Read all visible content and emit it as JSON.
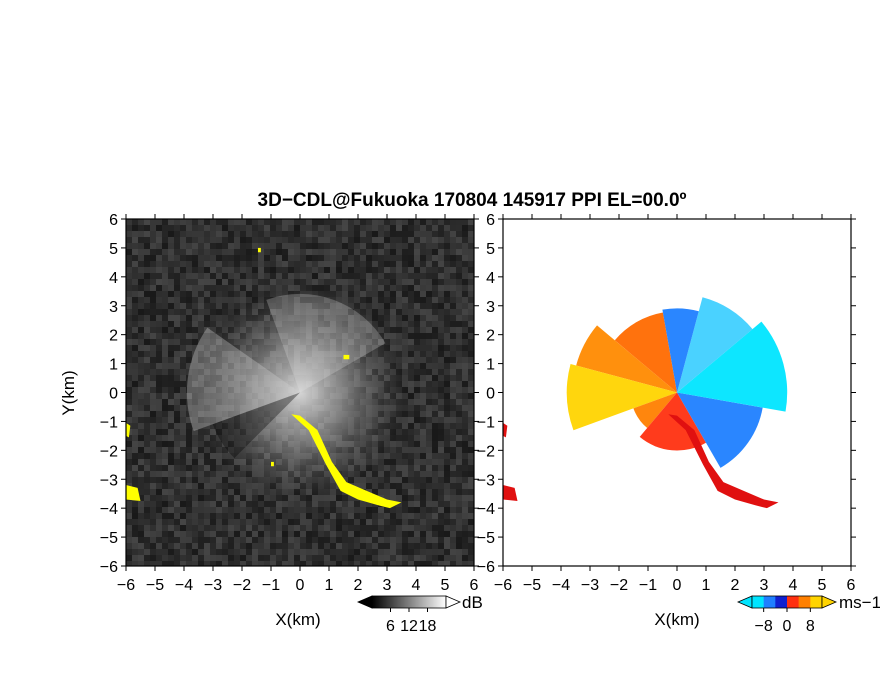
{
  "title": "3D−CDL@Fukuoka 170804 145917 PPI EL=00.0º",
  "chart_data": [
    {
      "type": "heatmap",
      "panel": "snr",
      "xlabel": "X(km)",
      "ylabel": "Y(km)",
      "xlim": [
        -6,
        6
      ],
      "ylim": [
        -6,
        6
      ],
      "x_ticks": [
        "−6",
        "−5",
        "−4",
        "−3",
        "−2",
        "−1",
        "0",
        "1",
        "2",
        "3",
        "4",
        "5",
        "6"
      ],
      "y_ticks": [
        "−6",
        "−5",
        "−4",
        "−3",
        "−2",
        "−1",
        "0",
        "1",
        "2",
        "3",
        "4",
        "5",
        "6"
      ],
      "grid": false,
      "colorbar": {
        "unit": "dB",
        "range": [
          0,
          24
        ],
        "tick_values": [
          6,
          12,
          18
        ],
        "tick_labels": [
          "6",
          "12",
          "18"
        ],
        "colormap": "grayscale",
        "low_color": "#000000",
        "high_color": "#ffffff"
      },
      "highlight_color": "#ffff00",
      "highlight_regions": [
        {
          "points": [
            [
              -0.3,
              -0.75
            ],
            [
              0.3,
              -1.3
            ],
            [
              0.9,
              -2.5
            ],
            [
              1.4,
              -3.4
            ],
            [
              2.0,
              -3.7
            ],
            [
              2.7,
              -3.9
            ],
            [
              3.1,
              -4.0
            ],
            [
              3.5,
              -3.8
            ],
            [
              3.0,
              -3.7
            ],
            [
              2.3,
              -3.4
            ],
            [
              1.6,
              -3.1
            ],
            [
              1.1,
              -2.4
            ],
            [
              0.6,
              -1.3
            ],
            [
              0.0,
              -0.8
            ]
          ]
        },
        {
          "points": [
            [
              -6.0,
              -3.2
            ],
            [
              -5.6,
              -3.3
            ],
            [
              -5.5,
              -3.75
            ],
            [
              -6.0,
              -3.7
            ]
          ]
        },
        {
          "points": [
            [
              -6.0,
              -1.05
            ],
            [
              -5.85,
              -1.15
            ],
            [
              -5.9,
              -1.55
            ],
            [
              -6.0,
              -1.5
            ]
          ]
        },
        {
          "points": [
            [
              -1.45,
              4.85
            ],
            [
              -1.35,
              4.85
            ],
            [
              -1.35,
              5.0
            ],
            [
              -1.45,
              5.0
            ]
          ]
        },
        {
          "points": [
            [
              1.5,
              1.15
            ],
            [
              1.7,
              1.15
            ],
            [
              1.7,
              1.3
            ],
            [
              1.5,
              1.3
            ]
          ]
        },
        {
          "points": [
            [
              -1.0,
              -2.4
            ],
            [
              -0.9,
              -2.4
            ],
            [
              -0.9,
              -2.55
            ],
            [
              -1.0,
              -2.55
            ]
          ]
        }
      ]
    },
    {
      "type": "heatmap",
      "panel": "radial_velocity",
      "xlabel": "X(km)",
      "ylabel": "",
      "xlim": [
        -6,
        6
      ],
      "ylim": [
        -6,
        6
      ],
      "x_ticks": [
        "−6",
        "−5",
        "−4",
        "−3",
        "−2",
        "−1",
        "0",
        "1",
        "2",
        "3",
        "4",
        "5",
        "6"
      ],
      "grid": false,
      "colorbar": {
        "unit": "ms−1",
        "range": [
          -12,
          12
        ],
        "tick_values": [
          -8,
          0,
          8
        ],
        "tick_labels": [
          "−8",
          "0",
          "8"
        ],
        "colors": [
          "#00e5ff",
          "#1f7fff",
          "#1020d0",
          "#ff3010",
          "#ff8000",
          "#ffd400"
        ]
      },
      "sectors": [
        {
          "from_deg": 100,
          "to_deg": 140,
          "radius_km": 2.8,
          "color": "#ff6a00"
        },
        {
          "from_deg": 140,
          "to_deg": 165,
          "radius_km": 3.6,
          "color": "#ff8a00"
        },
        {
          "from_deg": 165,
          "to_deg": 200,
          "radius_km": 3.8,
          "color": "#ffd400"
        },
        {
          "from_deg": 200,
          "to_deg": 230,
          "radius_km": 1.6,
          "color": "#ff8000"
        },
        {
          "from_deg": 230,
          "to_deg": 300,
          "radius_km": 2.0,
          "color": "#ff3010"
        },
        {
          "from_deg": 300,
          "to_deg": 350,
          "radius_km": 3.0,
          "color": "#1f7fff"
        },
        {
          "from_deg": 350,
          "to_deg": 40,
          "radius_km": 3.8,
          "color": "#00e5ff"
        },
        {
          "from_deg": 40,
          "to_deg": 75,
          "radius_km": 3.4,
          "color": "#40d0ff"
        },
        {
          "from_deg": 75,
          "to_deg": 100,
          "radius_km": 2.9,
          "color": "#1f7fff"
        }
      ]
    }
  ]
}
